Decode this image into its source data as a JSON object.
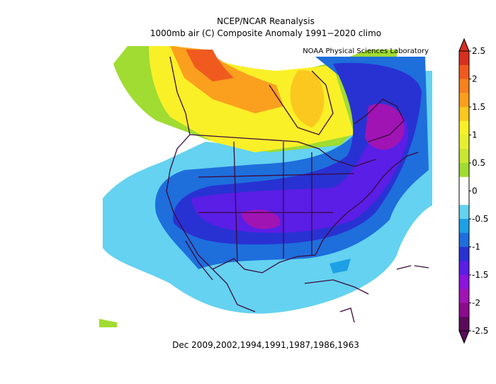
{
  "title": "NCEP/NCAR Reanalysis",
  "subtitle": "1000mb air (C) Composite Anomaly 1991−2020 climo",
  "credit": "NOAA Physical Sciences Laboratory",
  "footer": "Dec 2009,2002,1994,1991,1987,1986,1963",
  "colorbar": {
    "lim": [
      -2.5,
      2.5
    ],
    "ticks": [
      2.5,
      2,
      1.5,
      1,
      0.5,
      0,
      -0.5,
      -1,
      -1.5,
      -2,
      -2.5
    ],
    "colors": [
      "#d7301f",
      "#f05a1e",
      "#f5821e",
      "#faa01e",
      "#fac81e",
      "#faf028",
      "#e6f030",
      "#c8e632",
      "#a0dc32",
      "#ffffff",
      "#ffffff",
      "#64d2f0",
      "#1ea0e6",
      "#1e6edc",
      "#2832d2",
      "#5a1ee6",
      "#8c14dc",
      "#a014b4",
      "#8c0a8c",
      "#5a0a5a"
    ]
  }
}
